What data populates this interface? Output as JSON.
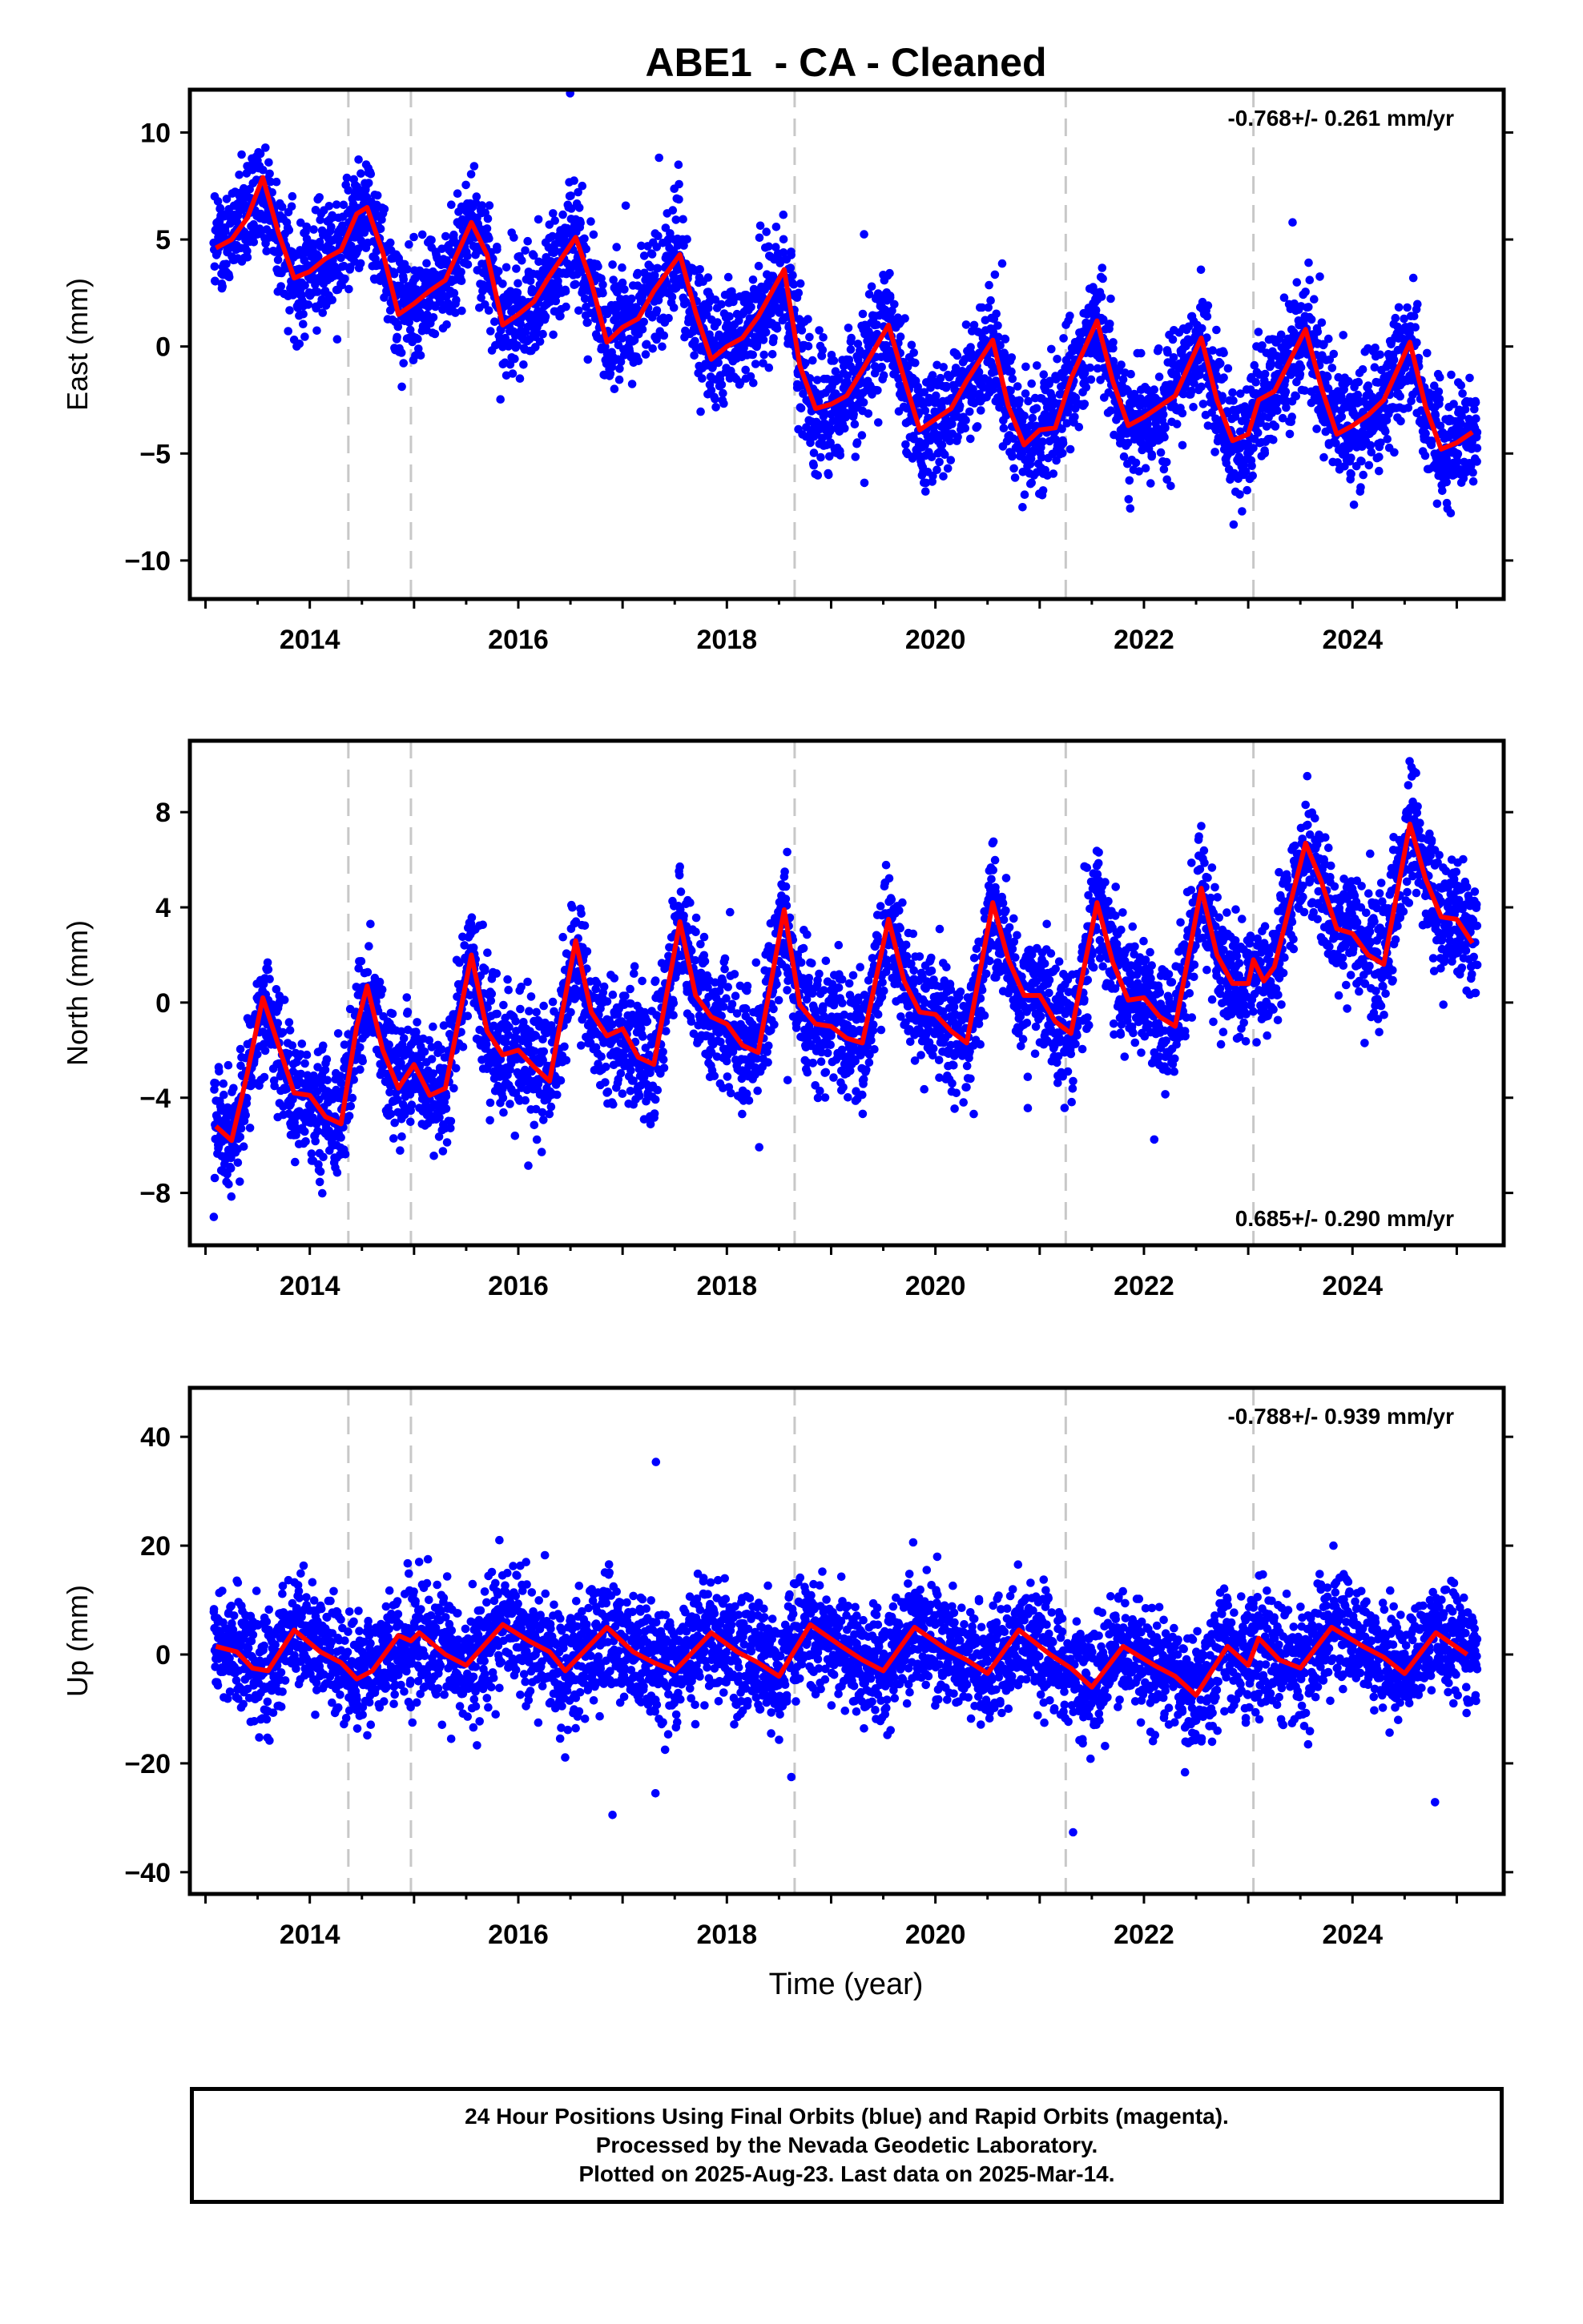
{
  "title": "ABE1  - CA - Cleaned",
  "xlabel": "Time (year)",
  "xticks": [
    2014,
    2016,
    2018,
    2020,
    2022,
    2024
  ],
  "caption": {
    "line1": "24 Hour Positions Using Final Orbits (blue) and Rapid Orbits (magenta).",
    "line2": "Processed by the Nevada Geodetic Laboratory.",
    "line3": "Plotted on 2025-Aug-23. Last data on 2025-Mar-14."
  },
  "colors": {
    "points": "#0000ff",
    "model": "#ff0000",
    "equipment_lines": "#c8c8c8",
    "frame": "#000000"
  },
  "chart_data": [
    {
      "type": "scatter",
      "ylabel": "East (mm)",
      "rate_label": "-0.768+/- 0.261 mm/yr",
      "rate_position": "top-right",
      "xlim": [
        2012.85,
        2025.45
      ],
      "ylim": [
        -11.8,
        12.0
      ],
      "yticks": [
        -10,
        -5,
        0,
        5,
        10
      ],
      "equipment_changes": [
        2014.37,
        2014.97,
        2018.65,
        2021.25,
        2023.05
      ],
      "model": {
        "x": [
          2013.1,
          2013.25,
          2013.4,
          2013.55,
          2013.7,
          2013.85,
          2014.0,
          2014.15,
          2014.3,
          2014.45,
          2014.55,
          2014.7,
          2014.85,
          2015.0,
          2015.15,
          2015.3,
          2015.55,
          2015.7,
          2015.85,
          2016.0,
          2016.15,
          2016.3,
          2016.55,
          2016.7,
          2016.85,
          2017.0,
          2017.15,
          2017.3,
          2017.55,
          2017.7,
          2017.85,
          2018.0,
          2018.15,
          2018.3,
          2018.55,
          2018.7,
          2018.85,
          2019.0,
          2019.15,
          2019.3,
          2019.55,
          2019.7,
          2019.85,
          2020.0,
          2020.15,
          2020.3,
          2020.55,
          2020.7,
          2020.85,
          2021.0,
          2021.15,
          2021.3,
          2021.55,
          2021.7,
          2021.85,
          2022.0,
          2022.15,
          2022.3,
          2022.55,
          2022.7,
          2022.85,
          2023.0,
          2023.1,
          2023.25,
          2023.55,
          2023.7,
          2023.85,
          2024.0,
          2024.15,
          2024.3,
          2024.55,
          2024.7,
          2024.85,
          2025.0,
          2025.15
        ],
        "y": [
          4.6,
          5.0,
          6.0,
          7.9,
          5.3,
          3.2,
          3.5,
          4.1,
          4.5,
          6.2,
          6.5,
          4.4,
          1.5,
          2.0,
          2.6,
          3.1,
          5.8,
          4.3,
          1.0,
          1.5,
          2.1,
          3.3,
          5.1,
          3.0,
          0.2,
          0.9,
          1.3,
          2.6,
          4.3,
          1.6,
          -0.6,
          0.0,
          0.4,
          1.4,
          3.6,
          -0.9,
          -2.9,
          -2.7,
          -2.3,
          -1.1,
          1.0,
          -1.5,
          -3.9,
          -3.4,
          -2.9,
          -1.6,
          0.3,
          -2.8,
          -4.6,
          -3.9,
          -3.8,
          -1.5,
          1.2,
          -1.6,
          -3.7,
          -3.3,
          -2.8,
          -2.3,
          0.4,
          -2.5,
          -4.4,
          -4.1,
          -2.5,
          -2.1,
          0.8,
          -1.9,
          -4.1,
          -3.7,
          -3.2,
          -2.5,
          0.2,
          -2.8,
          -4.8,
          -4.5,
          -4.0
        ]
      }
    },
    {
      "type": "scatter",
      "ylabel": "North (mm)",
      "rate_label": "0.685+/- 0.290 mm/yr",
      "rate_position": "bottom-right",
      "xlim": [
        2012.85,
        2025.45
      ],
      "ylim": [
        -10.2,
        11.0
      ],
      "yticks": [
        -8,
        -4,
        0,
        4,
        8
      ],
      "equipment_changes": [
        2014.37,
        2014.97,
        2018.65,
        2021.25,
        2023.05
      ],
      "model": {
        "x": [
          2013.1,
          2013.25,
          2013.4,
          2013.55,
          2013.7,
          2013.85,
          2014.0,
          2014.15,
          2014.3,
          2014.45,
          2014.55,
          2014.7,
          2014.85,
          2015.0,
          2015.15,
          2015.3,
          2015.55,
          2015.7,
          2015.85,
          2016.0,
          2016.15,
          2016.3,
          2016.55,
          2016.7,
          2016.85,
          2017.0,
          2017.15,
          2017.3,
          2017.55,
          2017.7,
          2017.85,
          2018.0,
          2018.15,
          2018.3,
          2018.55,
          2018.7,
          2018.85,
          2019.0,
          2019.15,
          2019.3,
          2019.55,
          2019.7,
          2019.85,
          2020.0,
          2020.15,
          2020.3,
          2020.55,
          2020.7,
          2020.85,
          2021.0,
          2021.15,
          2021.3,
          2021.55,
          2021.7,
          2021.85,
          2022.0,
          2022.15,
          2022.3,
          2022.55,
          2022.7,
          2022.85,
          2023.0,
          2023.05,
          2023.15,
          2023.25,
          2023.55,
          2023.7,
          2023.85,
          2024.0,
          2024.15,
          2024.3,
          2024.55,
          2024.7,
          2024.85,
          2025.0,
          2025.15
        ],
        "y": [
          -5.2,
          -5.8,
          -3.0,
          0.2,
          -1.8,
          -3.8,
          -3.9,
          -4.8,
          -5.1,
          -1.0,
          0.7,
          -2.0,
          -3.6,
          -2.6,
          -3.9,
          -3.6,
          2.0,
          -1.2,
          -2.2,
          -2.0,
          -2.7,
          -3.3,
          2.6,
          -0.4,
          -1.4,
          -1.1,
          -2.3,
          -2.6,
          3.4,
          0.3,
          -0.6,
          -0.9,
          -1.8,
          -2.1,
          3.9,
          -0.1,
          -0.9,
          -1.0,
          -1.5,
          -1.7,
          3.5,
          0.9,
          -0.4,
          -0.5,
          -1.2,
          -1.7,
          4.2,
          1.8,
          0.3,
          0.3,
          -0.8,
          -1.3,
          4.2,
          1.7,
          0.1,
          0.2,
          -0.6,
          -1.0,
          4.8,
          2.0,
          0.8,
          0.8,
          1.8,
          0.9,
          1.5,
          6.7,
          5.1,
          3.1,
          2.9,
          2.0,
          1.6,
          7.5,
          5.2,
          3.6,
          3.5,
          2.5
        ]
      }
    },
    {
      "type": "scatter",
      "ylabel": "Up (mm)",
      "rate_label": "-0.788+/- 0.939 mm/yr",
      "rate_position": "top-right",
      "xlim": [
        2012.85,
        2025.45
      ],
      "ylim": [
        -44,
        49
      ],
      "yticks": [
        -40,
        -20,
        0,
        20,
        40
      ],
      "equipment_changes": [
        2014.37,
        2014.97,
        2018.65,
        2021.25,
        2023.05
      ],
      "model": {
        "x": [
          2013.1,
          2013.3,
          2013.45,
          2013.6,
          2013.85,
          2014.1,
          2014.3,
          2014.45,
          2014.6,
          2014.85,
          2014.97,
          2015.05,
          2015.3,
          2015.5,
          2015.85,
          2016.1,
          2016.3,
          2016.45,
          2016.85,
          2017.1,
          2017.3,
          2017.5,
          2017.85,
          2018.1,
          2018.3,
          2018.5,
          2018.8,
          2019.1,
          2019.3,
          2019.5,
          2019.8,
          2020.1,
          2020.3,
          2020.5,
          2020.8,
          2021.1,
          2021.3,
          2021.5,
          2021.8,
          2022.1,
          2022.3,
          2022.5,
          2022.8,
          2023.0,
          2023.1,
          2023.3,
          2023.5,
          2023.8,
          2024.1,
          2024.3,
          2024.5,
          2024.8,
          2025.1
        ],
        "y": [
          1.5,
          0.5,
          -2.5,
          -3.0,
          4.5,
          0.5,
          -1.5,
          -4.5,
          -3.0,
          3.5,
          2.5,
          4.0,
          0.0,
          -2.0,
          5.5,
          2.5,
          0.5,
          -3.0,
          5.0,
          0.5,
          -1.5,
          -3.0,
          4.0,
          0.5,
          -1.5,
          -4.0,
          5.5,
          1.5,
          -1.0,
          -3.0,
          5.0,
          1.0,
          -1.0,
          -3.5,
          4.5,
          0.0,
          -2.5,
          -6.0,
          1.5,
          -2.0,
          -4.0,
          -7.5,
          1.5,
          -2.0,
          3.0,
          -1.0,
          -2.5,
          5.0,
          1.5,
          -0.5,
          -3.5,
          4.0,
          0.0
        ]
      }
    }
  ]
}
